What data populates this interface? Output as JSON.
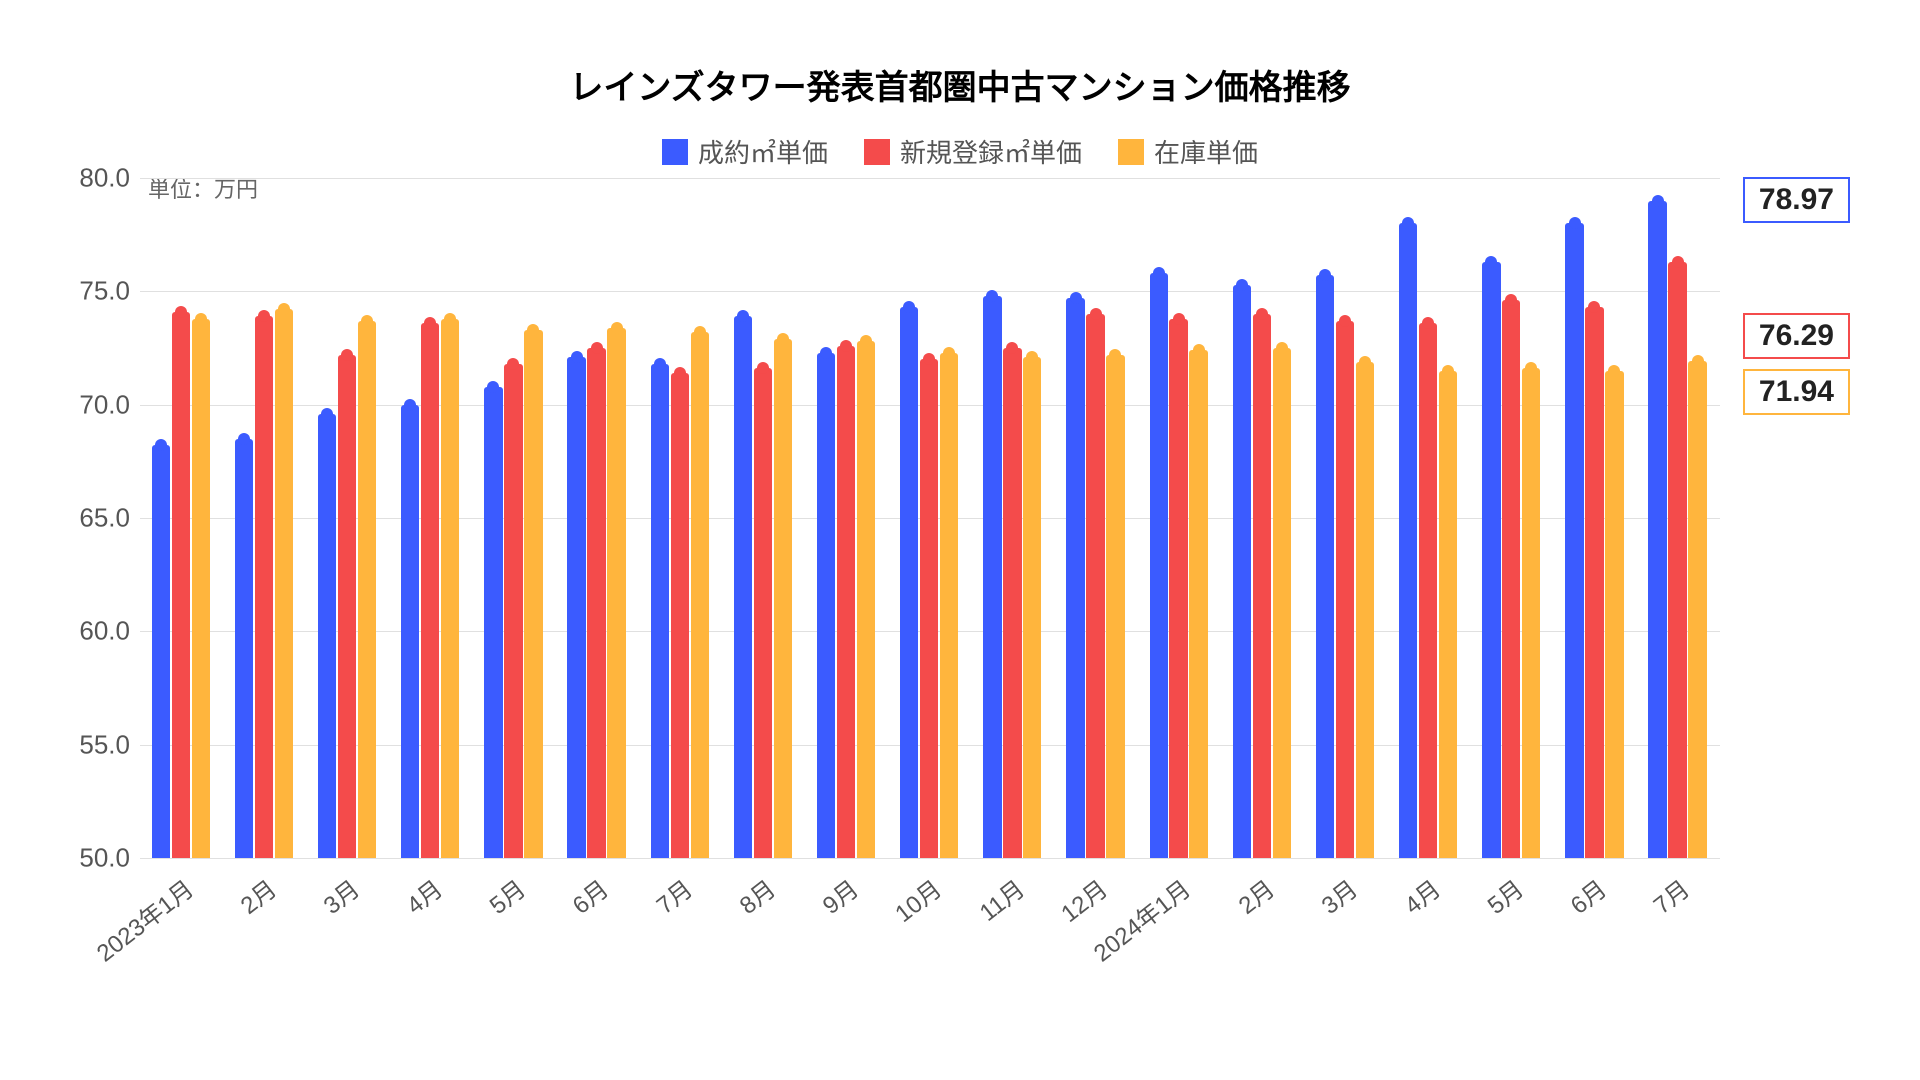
{
  "title": "レインズタワー発表首都圏中古マンション価格推移",
  "title_fontsize": 34,
  "unit_label": "単位：万円",
  "background_color": "#ffffff",
  "grid_color": "#e0e0e0",
  "axis_font_color": "#555555",
  "legend": [
    {
      "label": "成約㎡単価",
      "color": "#3b5bff"
    },
    {
      "label": "新規登録㎡単価",
      "color": "#f44b4b"
    },
    {
      "label": "在庫単価",
      "color": "#ffb53d"
    }
  ],
  "y_axis": {
    "min": 50.0,
    "max": 80.0,
    "ticks": [
      50.0,
      55.0,
      60.0,
      65.0,
      70.0,
      75.0,
      80.0
    ],
    "tick_decimals": 1
  },
  "categories": [
    "2023年1月",
    "2月",
    "3月",
    "4月",
    "5月",
    "6月",
    "7月",
    "8月",
    "9月",
    "10月",
    "11月",
    "12月",
    "2024年1月",
    "2月",
    "3月",
    "4月",
    "5月",
    "6月",
    "7月"
  ],
  "series": [
    {
      "name": "成約㎡単価",
      "color": "#3b5bff",
      "values": [
        68.2,
        68.5,
        69.6,
        70.0,
        70.8,
        72.1,
        71.8,
        73.9,
        72.3,
        74.3,
        74.8,
        74.7,
        75.8,
        75.3,
        75.7,
        78.0,
        76.3,
        78.0,
        78.97
      ]
    },
    {
      "name": "新規登録㎡単価",
      "color": "#f44b4b",
      "values": [
        74.1,
        73.9,
        72.2,
        73.6,
        71.8,
        72.5,
        71.4,
        71.6,
        72.6,
        72.0,
        72.5,
        74.0,
        73.8,
        74.0,
        73.7,
        73.6,
        74.6,
        74.3,
        76.29
      ]
    },
    {
      "name": "在庫単価",
      "color": "#ffb53d",
      "values": [
        73.8,
        74.2,
        73.7,
        73.8,
        73.3,
        73.4,
        73.2,
        72.9,
        72.8,
        72.3,
        72.1,
        72.2,
        72.4,
        72.5,
        71.9,
        71.5,
        71.6,
        71.5,
        71.94
      ]
    }
  ],
  "bar_group_width_ratio": 0.72,
  "bar_gap_ratio": 0.0,
  "callouts": [
    {
      "text": "78.97",
      "color": "#3b5bff",
      "value": 78.97
    },
    {
      "text": "76.29",
      "color": "#f44b4b",
      "value": 73.0
    },
    {
      "text": "71.94",
      "color": "#ffb53d",
      "value": 70.5
    }
  ]
}
